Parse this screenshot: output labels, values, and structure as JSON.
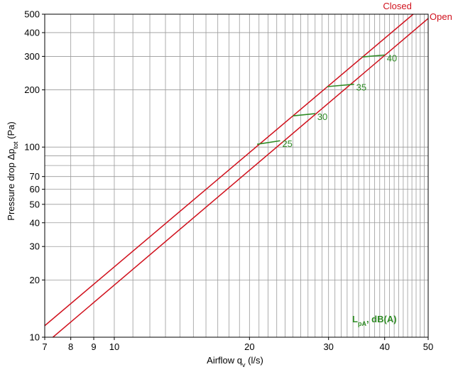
{
  "chart_data": {
    "type": "line",
    "x_scale": "log",
    "y_scale": "log",
    "xlim": [
      7,
      50
    ],
    "ylim": [
      10,
      500
    ],
    "grid": true,
    "xlabel_main": "Airflow q",
    "xlabel_sub": "v",
    "xlabel_unit": " (l/s)",
    "ylabel_main": "Pressure drop Δp",
    "ylabel_sub": "tot",
    "ylabel_unit": " (Pa)",
    "x_ticks": [
      {
        "value": 7,
        "label": "7"
      },
      {
        "value": 8,
        "label": "8"
      },
      {
        "value": 9,
        "label": "9"
      },
      {
        "value": 10,
        "label": "10"
      },
      {
        "value": 20,
        "label": "20"
      },
      {
        "value": 30,
        "label": "30"
      },
      {
        "value": 40,
        "label": "40"
      },
      {
        "value": 50,
        "label": "50"
      }
    ],
    "y_ticks": [
      {
        "value": 10,
        "label": "10"
      },
      {
        "value": 20,
        "label": "20"
      },
      {
        "value": 30,
        "label": "30"
      },
      {
        "value": 40,
        "label": "40"
      },
      {
        "value": 50,
        "label": "50"
      },
      {
        "value": 60,
        "label": "60"
      },
      {
        "value": 70,
        "label": "70"
      },
      {
        "value": 100,
        "label": "100"
      },
      {
        "value": 200,
        "label": "200"
      },
      {
        "value": 300,
        "label": "300"
      },
      {
        "value": 400,
        "label": "400"
      },
      {
        "value": 500,
        "label": "500"
      }
    ],
    "x_minor_step": 1,
    "y_minor_step": 10,
    "series": [
      {
        "name": "Closed",
        "color": "#d0101c",
        "x": [
          7,
          46.3
        ],
        "y": [
          11.5,
          500
        ]
      },
      {
        "name": "Open",
        "color": "#d0101c",
        "x": [
          7.3,
          50
        ],
        "y": [
          10,
          475
        ]
      }
    ],
    "sound_label_main": "L",
    "sound_label_sub": "pA",
    "sound_label_unit": ", dB(A)",
    "sound_lines": [
      {
        "label": "25",
        "x": [
          20.8,
          23.4
        ],
        "y": [
          103.5,
          108
        ]
      },
      {
        "label": "30",
        "x": [
          25.0,
          28.0
        ],
        "y": [
          146,
          150
        ]
      },
      {
        "label": "35",
        "x": [
          29.8,
          34.2
        ],
        "y": [
          208,
          214
        ]
      },
      {
        "label": "40",
        "x": [
          35.7,
          40.0
        ],
        "y": [
          298,
          305
        ]
      }
    ],
    "sound_color": "#2e8b24"
  }
}
